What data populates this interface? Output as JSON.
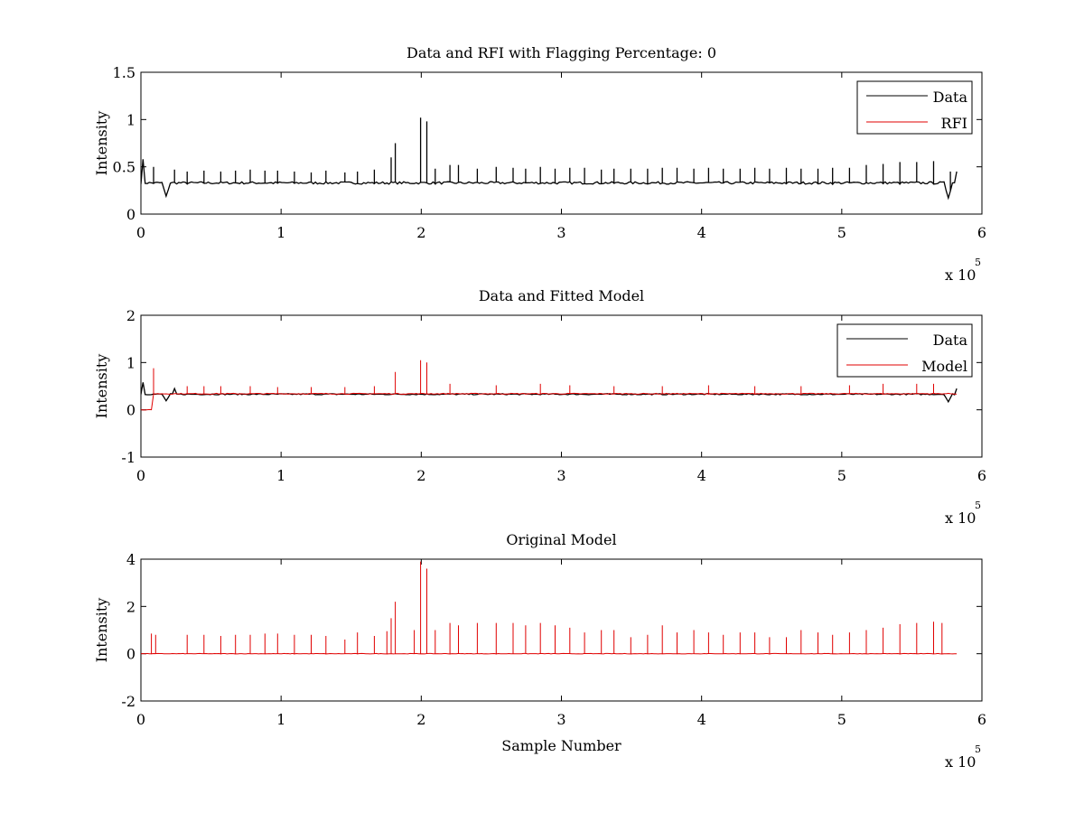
{
  "chart_data": [
    {
      "type": "line",
      "title": "Data and RFI with Flagging Percentage: 0",
      "xlabel": "",
      "ylabel": "Intensity",
      "xlim": [
        0,
        600000
      ],
      "ylim": [
        0,
        1.5
      ],
      "xticks": [
        0,
        1,
        2,
        3,
        4,
        5,
        6
      ],
      "yticks": [
        0,
        0.5,
        1,
        1.5
      ],
      "x_scale_label": "x 10",
      "x_scale_exponent": "5",
      "legend": {
        "placement": "top-right",
        "entries": [
          "Data",
          "RFI"
        ]
      },
      "series": [
        {
          "name": "Data",
          "color": "#000000",
          "baseline": 0.33,
          "spikes": [
            [
              2000,
              0.58
            ],
            [
              9000,
              0.5
            ],
            [
              24000,
              0.47
            ],
            [
              33000,
              0.45
            ],
            [
              45000,
              0.46
            ],
            [
              57000,
              0.45
            ],
            [
              68000,
              0.46
            ],
            [
              78000,
              0.47
            ],
            [
              88000,
              0.46
            ],
            [
              98000,
              0.46
            ],
            [
              110000,
              0.45
            ],
            [
              121000,
              0.44
            ],
            [
              132000,
              0.46
            ],
            [
              145000,
              0.44
            ],
            [
              155000,
              0.45
            ],
            [
              167000,
              0.47
            ],
            [
              178000,
              0.6
            ],
            [
              182000,
              0.75
            ],
            [
              200000,
              1.02
            ],
            [
              204000,
              0.98
            ],
            [
              210000,
              0.48
            ],
            [
              220000,
              0.52
            ],
            [
              227000,
              0.52
            ],
            [
              240000,
              0.48
            ],
            [
              253000,
              0.5
            ],
            [
              265000,
              0.49
            ],
            [
              275000,
              0.48
            ],
            [
              285000,
              0.5
            ],
            [
              296000,
              0.48
            ],
            [
              306000,
              0.49
            ],
            [
              317000,
              0.49
            ],
            [
              328000,
              0.47
            ],
            [
              338000,
              0.48
            ],
            [
              350000,
              0.48
            ],
            [
              361000,
              0.48
            ],
            [
              372000,
              0.49
            ],
            [
              383000,
              0.49
            ],
            [
              394000,
              0.48
            ],
            [
              405000,
              0.49
            ],
            [
              416000,
              0.48
            ],
            [
              427000,
              0.48
            ],
            [
              438000,
              0.49
            ],
            [
              449000,
              0.48
            ],
            [
              460000,
              0.49
            ],
            [
              471000,
              0.48
            ],
            [
              483000,
              0.48
            ],
            [
              494000,
              0.49
            ],
            [
              505000,
              0.49
            ],
            [
              517000,
              0.52
            ],
            [
              530000,
              0.53
            ],
            [
              542000,
              0.55
            ],
            [
              554000,
              0.55
            ],
            [
              566000,
              0.56
            ],
            [
              578000,
              0.45
            ]
          ],
          "dips": [
            [
              1000,
              0.58
            ],
            [
              18000,
              0.19
            ],
            [
              576000,
              0.17
            ],
            [
              582000,
              0.45
            ]
          ]
        },
        {
          "name": "RFI",
          "color": "#e00000",
          "values": []
        }
      ]
    },
    {
      "type": "line",
      "title": "Data and Fitted Model",
      "xlabel": "",
      "ylabel": "Intensity",
      "xlim": [
        0,
        600000
      ],
      "ylim": [
        -1,
        2
      ],
      "xticks": [
        0,
        1,
        2,
        3,
        4,
        5,
        6
      ],
      "yticks": [
        -1,
        0,
        1,
        2
      ],
      "x_scale_label": "x 10",
      "x_scale_exponent": "5",
      "legend": {
        "placement": "top-right",
        "entries": [
          "Data",
          "Model"
        ]
      },
      "series": [
        {
          "name": "Data",
          "color": "#000000",
          "baseline": 0.33,
          "dips": [
            [
              1000,
              0.58
            ],
            [
              18000,
              0.19
            ],
            [
              24000,
              0.45
            ],
            [
              576000,
              0.17
            ],
            [
              582000,
              0.45
            ]
          ]
        },
        {
          "name": "Model",
          "color": "#e00000",
          "baseline": 0.34,
          "start_value": 0.0,
          "start_until": 9000,
          "spikes": [
            [
              9000,
              0.88
            ],
            [
              33000,
              0.5
            ],
            [
              45000,
              0.5
            ],
            [
              57000,
              0.5
            ],
            [
              78000,
              0.5
            ],
            [
              98000,
              0.48
            ],
            [
              121000,
              0.48
            ],
            [
              145000,
              0.48
            ],
            [
              167000,
              0.5
            ],
            [
              182000,
              0.8
            ],
            [
              200000,
              1.05
            ],
            [
              204000,
              1.0
            ],
            [
              220000,
              0.55
            ],
            [
              253000,
              0.52
            ],
            [
              285000,
              0.55
            ],
            [
              306000,
              0.52
            ],
            [
              338000,
              0.5
            ],
            [
              372000,
              0.5
            ],
            [
              405000,
              0.52
            ],
            [
              438000,
              0.5
            ],
            [
              471000,
              0.5
            ],
            [
              505000,
              0.52
            ],
            [
              530000,
              0.55
            ],
            [
              554000,
              0.55
            ],
            [
              566000,
              0.55
            ]
          ]
        }
      ]
    },
    {
      "type": "line",
      "title": "Original Model",
      "xlabel": "Sample Number",
      "ylabel": "Intensity",
      "xlim": [
        0,
        600000
      ],
      "ylim": [
        -2,
        4
      ],
      "xticks": [
        0,
        1,
        2,
        3,
        4,
        5,
        6
      ],
      "yticks": [
        -2,
        0,
        2,
        4
      ],
      "x_scale_label": "x 10",
      "x_scale_exponent": "5",
      "series": [
        {
          "name": "",
          "color": "#e00000",
          "baseline": 0.0,
          "spikes": [
            [
              8000,
              0.85
            ],
            [
              10000,
              0.8
            ],
            [
              33000,
              0.8
            ],
            [
              45000,
              0.8
            ],
            [
              57000,
              0.75
            ],
            [
              68000,
              0.8
            ],
            [
              78000,
              0.8
            ],
            [
              88000,
              0.85
            ],
            [
              98000,
              0.85
            ],
            [
              110000,
              0.8
            ],
            [
              121000,
              0.8
            ],
            [
              132000,
              0.75
            ],
            [
              145000,
              0.6
            ],
            [
              155000,
              0.9
            ],
            [
              167000,
              0.75
            ],
            [
              176000,
              0.95
            ],
            [
              178000,
              1.5
            ],
            [
              182000,
              2.2
            ],
            [
              195000,
              1.0
            ],
            [
              200000,
              3.9
            ],
            [
              204000,
              3.6
            ],
            [
              210000,
              1.0
            ],
            [
              220000,
              1.3
            ],
            [
              227000,
              1.2
            ],
            [
              240000,
              1.3
            ],
            [
              253000,
              1.3
            ],
            [
              265000,
              1.3
            ],
            [
              275000,
              1.2
            ],
            [
              285000,
              1.3
            ],
            [
              296000,
              1.2
            ],
            [
              306000,
              1.1
            ],
            [
              317000,
              0.9
            ],
            [
              328000,
              1.0
            ],
            [
              338000,
              1.0
            ],
            [
              350000,
              0.7
            ],
            [
              361000,
              0.8
            ],
            [
              372000,
              1.2
            ],
            [
              383000,
              0.9
            ],
            [
              394000,
              1.0
            ],
            [
              405000,
              0.9
            ],
            [
              416000,
              0.8
            ],
            [
              427000,
              0.9
            ],
            [
              438000,
              0.9
            ],
            [
              449000,
              0.7
            ],
            [
              460000,
              0.7
            ],
            [
              471000,
              1.0
            ],
            [
              483000,
              0.9
            ],
            [
              494000,
              0.8
            ],
            [
              505000,
              0.9
            ],
            [
              517000,
              1.0
            ],
            [
              530000,
              1.1
            ],
            [
              542000,
              1.25
            ],
            [
              554000,
              1.3
            ],
            [
              566000,
              1.35
            ],
            [
              571000,
              1.3
            ]
          ]
        }
      ]
    }
  ]
}
